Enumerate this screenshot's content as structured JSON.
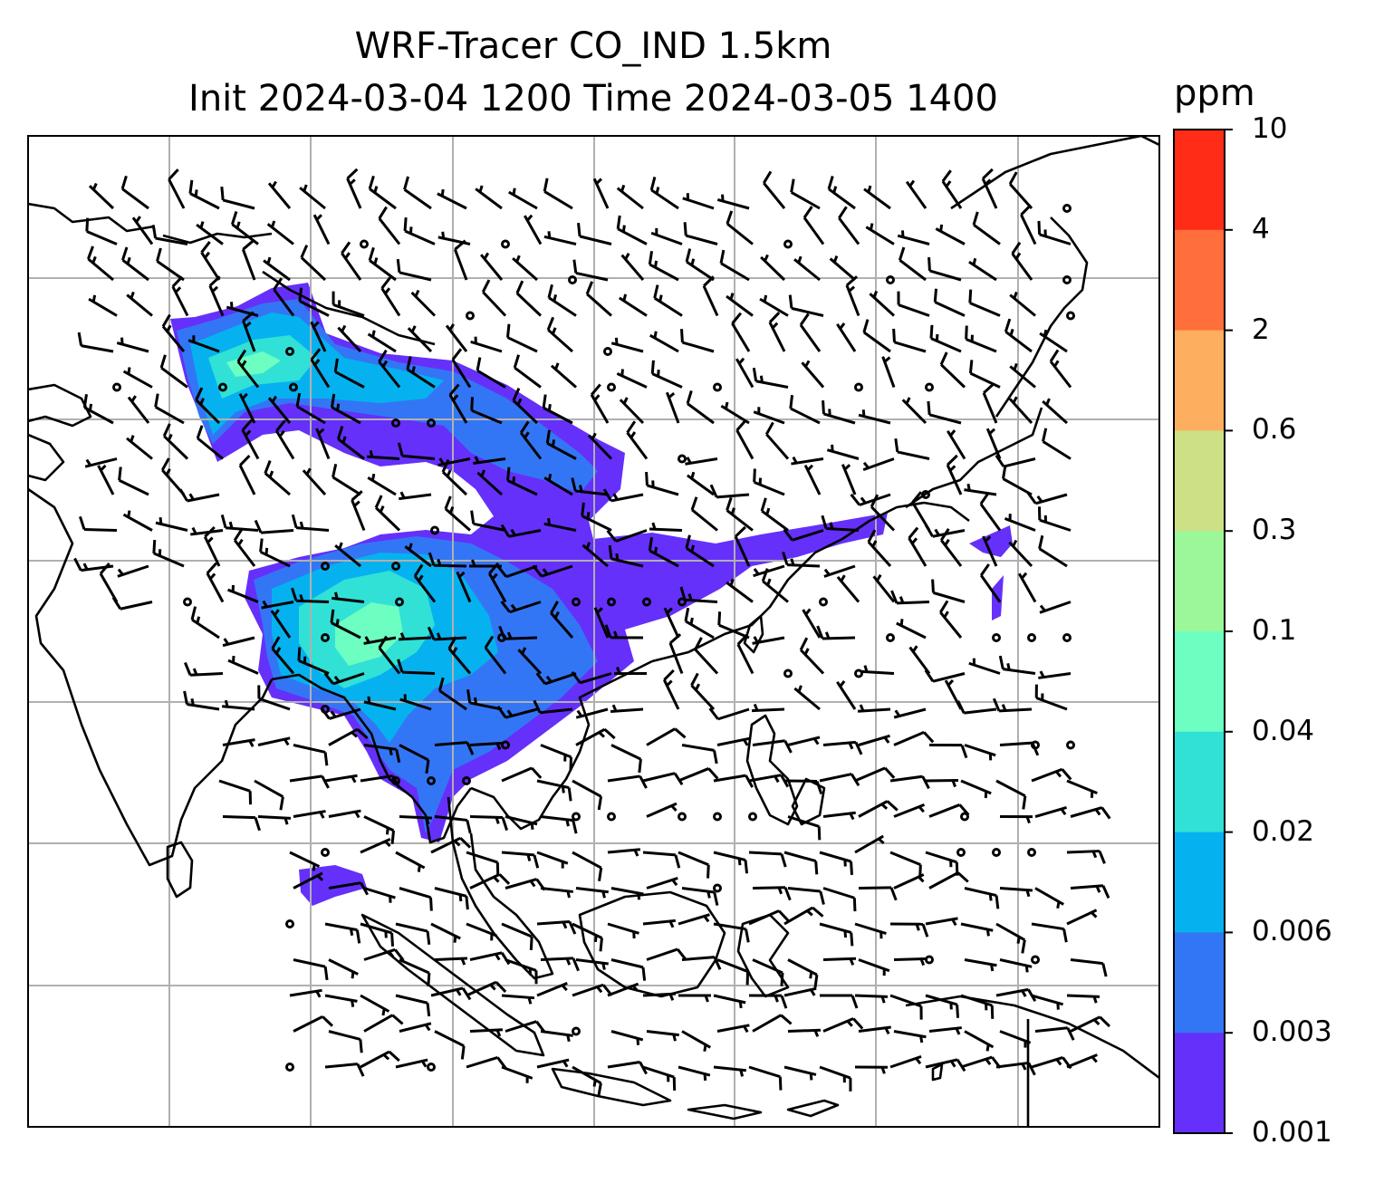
{
  "title": {
    "line1": "WRF-Tracer CO_IND 1.5km",
    "line2": "Init 2024-03-04 1200 Time 2024-03-05 1400"
  },
  "colorbar": {
    "unit": "ppm",
    "levels": [
      "10",
      "4",
      "2",
      "0.6",
      "0.3",
      "0.1",
      "0.04",
      "0.02",
      "0.006",
      "0.003",
      "0.001"
    ],
    "colors": [
      "#ff2d17",
      "#ff6e3b",
      "#fdaf5f",
      "#cde086",
      "#9cf798",
      "#6dfec2",
      "#31e1d6",
      "#05b2ef",
      "#3376f5",
      "#6530fa"
    ]
  },
  "map": {
    "gridlines": true,
    "gridline_color": "#b0b0b0",
    "coastline_color": "#000000"
  }
}
